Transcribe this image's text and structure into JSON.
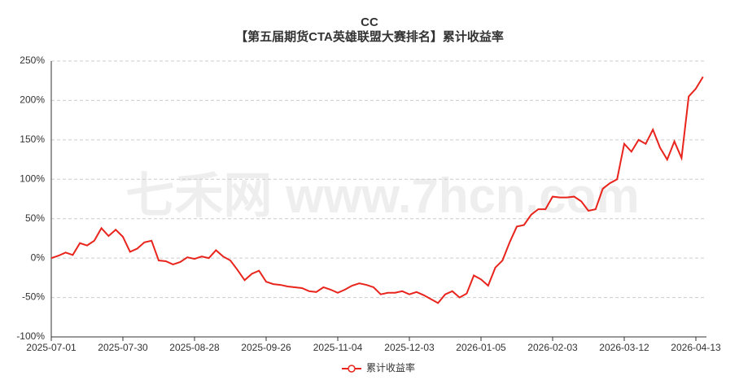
{
  "chart_data": {
    "type": "line",
    "title": "CC",
    "subtitle": "【第五届期货CTA英雄联盟大赛排名】累计收益率",
    "watermark": "七禾网 www.7hcn.com",
    "categories": [
      "2025-07-01",
      null,
      null,
      null,
      null,
      null,
      null,
      null,
      null,
      null,
      "2025-07-30",
      null,
      null,
      null,
      null,
      null,
      null,
      null,
      null,
      null,
      "2025-08-28",
      null,
      null,
      null,
      null,
      null,
      null,
      null,
      null,
      null,
      "2025-09-26",
      null,
      null,
      null,
      null,
      null,
      null,
      null,
      null,
      null,
      "2025-11-04",
      null,
      null,
      null,
      null,
      null,
      null,
      null,
      null,
      null,
      "2025-12-03",
      null,
      null,
      null,
      null,
      null,
      null,
      null,
      null,
      null,
      "2026-01-05",
      null,
      null,
      null,
      null,
      null,
      null,
      null,
      null,
      null,
      "2026-02-03",
      null,
      null,
      null,
      null,
      null,
      null,
      null,
      null,
      null,
      "2026-03-12",
      null,
      null,
      null,
      null,
      null,
      null,
      null,
      null,
      null,
      "2026-04-13",
      null
    ],
    "series": [
      {
        "name": "累计收益率",
        "color": "#e8241c",
        "values": [
          0,
          3,
          7,
          4,
          19,
          16,
          22,
          38,
          28,
          36,
          27,
          8,
          12,
          20,
          22,
          -3,
          -4,
          -8,
          -5,
          1,
          -1,
          2,
          0,
          10,
          2,
          -3,
          -15,
          -28,
          -20,
          -16,
          -30,
          -33,
          -34,
          -36,
          -37,
          -38,
          -42,
          -43,
          -37,
          -40,
          -44,
          -40,
          -35,
          -32,
          -34,
          -37,
          -46,
          -44,
          -44,
          -42,
          -46,
          -43,
          -47,
          -52,
          -57,
          -46,
          -42,
          -50,
          -45,
          -22,
          -27,
          -35,
          -12,
          -3,
          20,
          40,
          42,
          55,
          62,
          62,
          78,
          77,
          77,
          78,
          72,
          60,
          62,
          88,
          95,
          100,
          145,
          135,
          150,
          145,
          163,
          140,
          125,
          148,
          127,
          205,
          215,
          230
        ]
      }
    ],
    "ylim": [
      -100,
      250
    ],
    "yticks": [
      {
        "value": -100,
        "label": "-100%"
      },
      {
        "value": -50,
        "label": "-50%"
      },
      {
        "value": 0,
        "label": "0%"
      },
      {
        "value": 50,
        "label": "50%"
      },
      {
        "value": 100,
        "label": "100%"
      },
      {
        "value": 150,
        "label": "150%"
      },
      {
        "value": 200,
        "label": "200%"
      },
      {
        "value": 250,
        "label": "250%"
      }
    ],
    "grid": true
  }
}
